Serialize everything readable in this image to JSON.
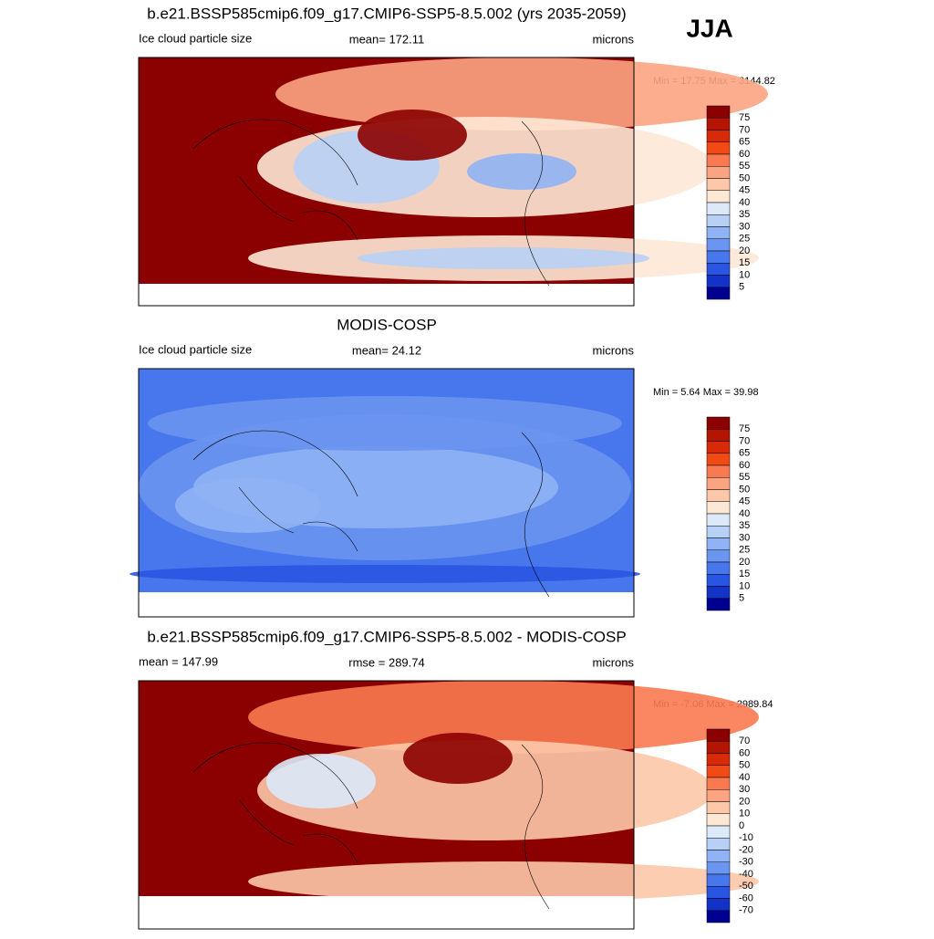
{
  "season": "JJA",
  "panels": [
    {
      "title": "b.e21.BSSP585cmip6.f09_g17.CMIP6-SSP5-8.5.002 (yrs 2035-2059)",
      "left": "Ice cloud particle size",
      "center": "mean= 172.11",
      "right": "microns",
      "minmax": "Min =  17.75 Max = 3144.82",
      "colorbar": {
        "labels": [
          "75",
          "70",
          "65",
          "60",
          "55",
          "50",
          "45",
          "40",
          "35",
          "30",
          "25",
          "20",
          "15",
          "10",
          "5"
        ],
        "colors": [
          "#8b0000",
          "#b31500",
          "#d62a08",
          "#f24a14",
          "#f97a50",
          "#fca482",
          "#fdc8aa",
          "#fde8d6",
          "#dce9f8",
          "#b9d0f6",
          "#8fb3f4",
          "#6a95f0",
          "#4876ec",
          "#2a55e2",
          "#1232c8",
          "#000090"
        ]
      }
    },
    {
      "title": "MODIS-COSP",
      "left": "Ice cloud particle size",
      "center": "mean=  24.12",
      "right": "microns",
      "minmax": "Min =   5.64 Max =  39.98",
      "colorbar": {
        "labels": [
          "75",
          "70",
          "65",
          "60",
          "55",
          "50",
          "45",
          "40",
          "35",
          "30",
          "25",
          "20",
          "15",
          "10",
          "5"
        ],
        "colors": [
          "#8b0000",
          "#b31500",
          "#d62a08",
          "#f24a14",
          "#f97a50",
          "#fca482",
          "#fdc8aa",
          "#fde8d6",
          "#dce9f8",
          "#b9d0f6",
          "#8fb3f4",
          "#6a95f0",
          "#4876ec",
          "#2a55e2",
          "#1232c8",
          "#000090"
        ]
      }
    },
    {
      "title": "b.e21.BSSP585cmip6.f09_g17.CMIP6-SSP5-8.5.002 - MODIS-COSP",
      "left": "mean = 147.99",
      "center": "rmse = 289.74",
      "right": "microns",
      "minmax": "Min =  -7.06 Max = 2989.84",
      "colorbar": {
        "labels": [
          "70",
          "60",
          "50",
          "40",
          "30",
          "20",
          "10",
          "0",
          "-10",
          "-20",
          "-30",
          "-40",
          "-50",
          "-60",
          "-70"
        ],
        "colors": [
          "#8b0000",
          "#b31500",
          "#d62a08",
          "#f24a14",
          "#f97a50",
          "#fca482",
          "#fdc8aa",
          "#fde8d6",
          "#dce9f8",
          "#b9d0f6",
          "#8fb3f4",
          "#6a95f0",
          "#4876ec",
          "#2a55e2",
          "#1232c8",
          "#000090"
        ]
      }
    }
  ]
}
